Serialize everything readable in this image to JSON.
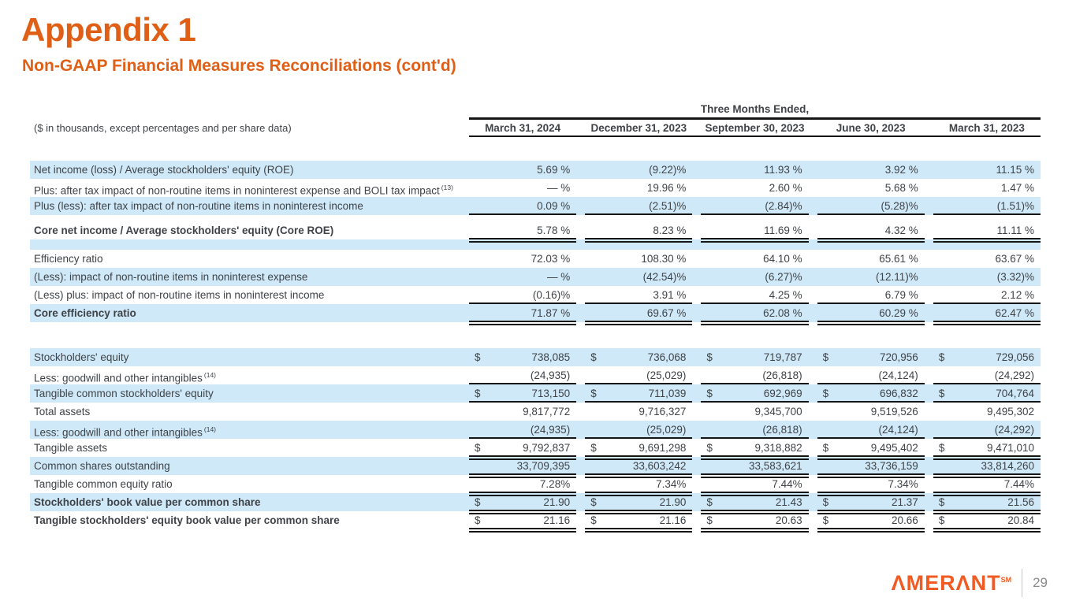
{
  "page": {
    "title": "Appendix 1",
    "subtitle": "Non-GAAP Financial Measures Reconciliations (cont'd)"
  },
  "table": {
    "unit_note": "($ in thousands, except percentages and per share data)",
    "period_header": "Three Months Ended,",
    "columns": [
      "March 31, 2024",
      "December 31, 2023",
      "September 30, 2023",
      "June 30, 2023",
      "March 31, 2023"
    ],
    "rows": [
      {
        "label": "Net income (loss) / Average stockholders' equity (ROE)",
        "bg": "blue",
        "bold": false,
        "dollar": false,
        "underline": "none",
        "values": [
          "5.69 %",
          "(9.22)%",
          "11.93 %",
          "3.92 %",
          "11.15 %"
        ]
      },
      {
        "label": "Plus: after tax impact of non-routine items in noninterest expense and BOLI tax impact",
        "sup": "(13)",
        "bg": "white",
        "bold": false,
        "dollar": false,
        "underline": "none",
        "values": [
          "— %",
          "19.96 %",
          "2.60 %",
          "5.68 %",
          "1.47 %"
        ]
      },
      {
        "label": "Plus (less): after tax impact of non-routine items in noninterest income",
        "bg": "blue",
        "bold": false,
        "dollar": false,
        "underline": "single",
        "values": [
          "0.09 %",
          "(2.51)%",
          "(2.84)%",
          "(5.28)%",
          "(1.51)%"
        ]
      },
      {
        "type": "spacer",
        "bg": "white",
        "height": 8
      },
      {
        "label": "Core net income / Average stockholders' equity (Core ROE)",
        "bg": "white",
        "bold": true,
        "dollar": false,
        "underline": "double",
        "values": [
          "5.78 %",
          "8.23 %",
          "11.69 %",
          "4.32 %",
          "11.11 %"
        ]
      },
      {
        "type": "spacer",
        "bg": "blue",
        "height": 13
      },
      {
        "label": "Efficiency ratio",
        "bg": "white",
        "bold": false,
        "dollar": false,
        "underline": "none",
        "values": [
          "72.03 %",
          "108.30 %",
          "64.10 %",
          "65.61 %",
          "63.67 %"
        ]
      },
      {
        "label": "(Less): impact of non-routine items in noninterest expense",
        "bg": "blue",
        "bold": false,
        "dollar": false,
        "underline": "none",
        "values": [
          "— %",
          "(42.54)%",
          "(6.27)%",
          "(12.11)%",
          "(3.32)%"
        ]
      },
      {
        "label": "(Less) plus: impact of non-routine items in noninterest income",
        "bg": "white",
        "bold": false,
        "dollar": false,
        "underline": "single",
        "values": [
          "(0.16)%",
          "3.91 %",
          "4.25 %",
          "6.79 %",
          "2.12 %"
        ]
      },
      {
        "label": "Core efficiency ratio",
        "bg": "blue",
        "bold": true,
        "dollar": false,
        "underline": "double",
        "values": [
          "71.87 %",
          "69.67 %",
          "62.08 %",
          "60.29 %",
          "62.47 %"
        ]
      },
      {
        "type": "spacer",
        "bg": "white",
        "height": 33
      },
      {
        "label": "Stockholders' equity",
        "bg": "blue",
        "bold": false,
        "dollar": true,
        "underline": "none",
        "values": [
          "738,085",
          "736,068",
          "719,787",
          "720,956",
          "729,056"
        ]
      },
      {
        "label": "Less: goodwill and other intangibles",
        "sup": "(14)",
        "bg": "white",
        "bold": false,
        "dollar": false,
        "underline": "single",
        "values": [
          "(24,935)",
          "(25,029)",
          "(26,818)",
          "(24,124)",
          "(24,292)"
        ]
      },
      {
        "label": "Tangible common stockholders' equity",
        "bg": "blue",
        "bold": false,
        "dollar": true,
        "underline": "single",
        "values": [
          "713,150",
          "711,039",
          "692,969",
          "696,832",
          "704,764"
        ]
      },
      {
        "label": "Total assets",
        "bg": "white",
        "bold": false,
        "dollar": false,
        "underline": "none",
        "values": [
          "9,817,772",
          "9,716,327",
          "9,345,700",
          "9,519,526",
          "9,495,302"
        ]
      },
      {
        "label": "Less: goodwill and other intangibles",
        "sup": "(14)",
        "bg": "blue",
        "bold": false,
        "dollar": false,
        "underline": "single",
        "values": [
          "(24,935)",
          "(25,029)",
          "(26,818)",
          "(24,124)",
          "(24,292)"
        ]
      },
      {
        "label": "Tangible assets",
        "bg": "white",
        "bold": false,
        "dollar": true,
        "underline": "double",
        "values": [
          "9,792,837",
          "9,691,298",
          "9,318,882",
          "9,495,402",
          "9,471,010"
        ]
      },
      {
        "label": "Common shares outstanding",
        "bg": "blue",
        "bold": false,
        "dollar": false,
        "underline": "double",
        "values": [
          "33,709,395",
          "33,603,242",
          "33,583,621",
          "33,736,159",
          "33,814,260"
        ]
      },
      {
        "label": "Tangible common equity ratio",
        "bg": "white",
        "bold": false,
        "dollar": false,
        "underline": "double",
        "values": [
          "7.28%",
          "7.34%",
          "7.44%",
          "7.34%",
          "7.44%"
        ]
      },
      {
        "label": "Stockholders' book value per common share",
        "bg": "blue",
        "bold": true,
        "dollar": true,
        "underline": "double",
        "values": [
          "21.90",
          "21.90",
          "21.43",
          "21.37",
          "21.56"
        ]
      },
      {
        "label": "Tangible stockholders' equity book value per common share",
        "bg": "white",
        "bold": true,
        "dollar": true,
        "underline": "double",
        "values": [
          "21.16",
          "21.16",
          "20.63",
          "20.66",
          "20.84"
        ]
      }
    ]
  },
  "footer": {
    "logo_text": "AMERANT",
    "logo_mark": "SM",
    "page_number": "29"
  },
  "colors": {
    "accent_orange": "#e05f17",
    "logo_orange": "#f15a22",
    "row_blue": "#cfe9f9",
    "text": "#3f4347",
    "line": "#151515"
  }
}
